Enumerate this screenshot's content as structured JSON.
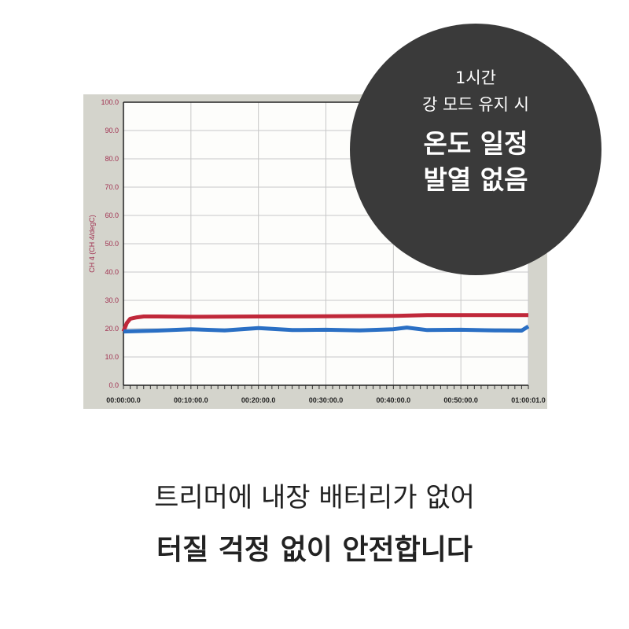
{
  "chart_data": {
    "type": "line",
    "ylabel": "CH 4 (CH 4/degC)",
    "ylim": [
      0,
      100
    ],
    "yticks": [
      "0.0",
      "10.0",
      "20.0",
      "30.0",
      "40.0",
      "50.0",
      "60.0",
      "70.0",
      "80.0",
      "90.0",
      "100.0"
    ],
    "xticks": [
      "00:00:00.0",
      "00:10:00.0",
      "00:20:00.0",
      "00:30:00.0",
      "00:40:00.0",
      "00:50:00.0",
      "01:00:01.0"
    ],
    "xlim_minutes": [
      0,
      60
    ],
    "grid": true,
    "series": [
      {
        "color": "#c0283a",
        "x": [
          0,
          0.5,
          1,
          2,
          3,
          5,
          10,
          20,
          30,
          40,
          45,
          50,
          60
        ],
        "values": [
          19,
          22,
          23.5,
          24,
          24.3,
          24.3,
          24.2,
          24.3,
          24.4,
          24.5,
          24.8,
          24.8,
          24.8
        ]
      },
      {
        "color": "#2a6fc4",
        "x": [
          0,
          5,
          10,
          15,
          20,
          25,
          30,
          35,
          40,
          42,
          45,
          50,
          55,
          59,
          60
        ],
        "values": [
          19,
          19.3,
          19.8,
          19.4,
          20.2,
          19.5,
          19.6,
          19.4,
          19.8,
          20.4,
          19.5,
          19.6,
          19.4,
          19.3,
          20.8
        ]
      }
    ]
  },
  "badge": {
    "line1": "1시간",
    "line2": "강 모드 유지 시",
    "line3": "온도 일정",
    "line4": "발열 없음"
  },
  "caption": {
    "line1": "트리머에 내장 배터리가 없어",
    "line2": "터질 걱정 없이 안전합니다"
  }
}
